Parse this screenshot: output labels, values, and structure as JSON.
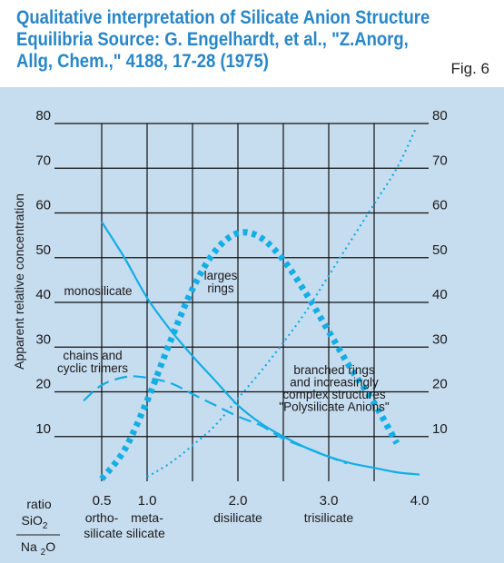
{
  "header": {
    "title_lines": [
      "Qualitative interpretation of Silicate Anion Structure",
      "Equilibria Source: G. Engelhardt, et al., \"Z.Anorg,",
      "Allg, Chem.,\" 4188, 17-28 (1975)"
    ],
    "figure_label": "Fig. 6"
  },
  "colors": {
    "curve": "#12aee6",
    "grid": "#111111",
    "title": "#2787c9",
    "background": "#c6dcef"
  },
  "chart_data": {
    "type": "line",
    "ylabel": "Apparent relative concentration",
    "ylim": [
      0,
      80
    ],
    "xlim": [
      0.5,
      4.0
    ],
    "y_ticks": [
      "10",
      "20",
      "30",
      "40",
      "50",
      "60",
      "70",
      "80"
    ],
    "y_ticks_right": [
      "10",
      "20",
      "30",
      "40",
      "50",
      "60",
      "70",
      "80"
    ],
    "x_ticks": [
      {
        "value": 0.5,
        "label": "0.5",
        "sub": "ortho-"
      },
      {
        "value": 1.0,
        "label": "1.0",
        "sub": "meta-"
      },
      {
        "value": 2.0,
        "label": "2.0",
        "sub": "disilicate"
      },
      {
        "value": 3.0,
        "label": "3.0",
        "sub": "trisilicate"
      },
      {
        "value": 4.0,
        "label": "4.0",
        "sub": ""
      }
    ],
    "x_sub_second_line": "silicate silicate",
    "ratio_label": {
      "top": "ratio",
      "numerator": "SiO",
      "num_sub": "2",
      "denominator": "Na",
      "den_sub": "2",
      "den_suffix": "O"
    },
    "grid": true,
    "vertical_gridlines": [
      0.5,
      1.0,
      1.5,
      2.0,
      2.5,
      3.0,
      3.5
    ],
    "series": [
      {
        "name": "monosilicate",
        "style": "solid",
        "points": [
          [
            0.5,
            58
          ],
          [
            0.75,
            50
          ],
          [
            1.0,
            41
          ],
          [
            1.25,
            34
          ],
          [
            1.5,
            28
          ],
          [
            1.75,
            22.5
          ],
          [
            2.0,
            17
          ],
          [
            2.25,
            13
          ],
          [
            2.5,
            10
          ],
          [
            2.75,
            7.5
          ],
          [
            3.0,
            5.5
          ],
          [
            3.25,
            4
          ],
          [
            3.5,
            3
          ],
          [
            3.75,
            2
          ],
          [
            4.0,
            1.5
          ]
        ]
      },
      {
        "name": "chains and cyclic trimers",
        "style": "dashed",
        "points": [
          [
            0.3,
            18
          ],
          [
            0.5,
            21.5
          ],
          [
            0.75,
            23.3
          ],
          [
            0.95,
            23.3
          ],
          [
            1.25,
            22
          ],
          [
            1.5,
            19.5
          ],
          [
            1.75,
            17
          ],
          [
            2.0,
            14.5
          ],
          [
            2.25,
            12.5
          ],
          [
            2.5,
            9.5
          ],
          [
            2.75,
            7.5
          ],
          [
            3.0,
            5.5
          ],
          [
            3.2,
            4
          ]
        ]
      },
      {
        "name": "larges rings",
        "style": "heavy-dotted",
        "points": [
          [
            0.5,
            0.5
          ],
          [
            0.75,
            7
          ],
          [
            1.0,
            18
          ],
          [
            1.25,
            31
          ],
          [
            1.5,
            43
          ],
          [
            1.75,
            51.5
          ],
          [
            2.0,
            55.5
          ],
          [
            2.25,
            54.5
          ],
          [
            2.5,
            49.5
          ],
          [
            2.75,
            42
          ],
          [
            3.0,
            33.5
          ],
          [
            3.25,
            25
          ],
          [
            3.5,
            17.5
          ],
          [
            3.75,
            8.5
          ]
        ]
      },
      {
        "name": "branched rings and increasingly complex structures \"Polysilicate Anions\"",
        "style": "light-dotted",
        "points": [
          [
            1.0,
            1
          ],
          [
            1.25,
            4
          ],
          [
            1.5,
            8
          ],
          [
            1.75,
            12.5
          ],
          [
            2.0,
            18.5
          ],
          [
            2.25,
            24.5
          ],
          [
            2.5,
            31
          ],
          [
            2.75,
            38
          ],
          [
            3.0,
            46
          ],
          [
            3.25,
            54
          ],
          [
            3.5,
            62
          ],
          [
            3.75,
            70
          ],
          [
            3.95,
            78.5
          ]
        ]
      }
    ],
    "annotations": {
      "monosilicate": [
        "monosilicate"
      ],
      "trimers": [
        "chains and",
        "cyclic trimers"
      ],
      "rings": [
        "larges",
        "rings"
      ],
      "branched": [
        "branched rings",
        "and increasingly",
        "complex structures",
        "\"Polysilicate Anions\""
      ]
    }
  }
}
